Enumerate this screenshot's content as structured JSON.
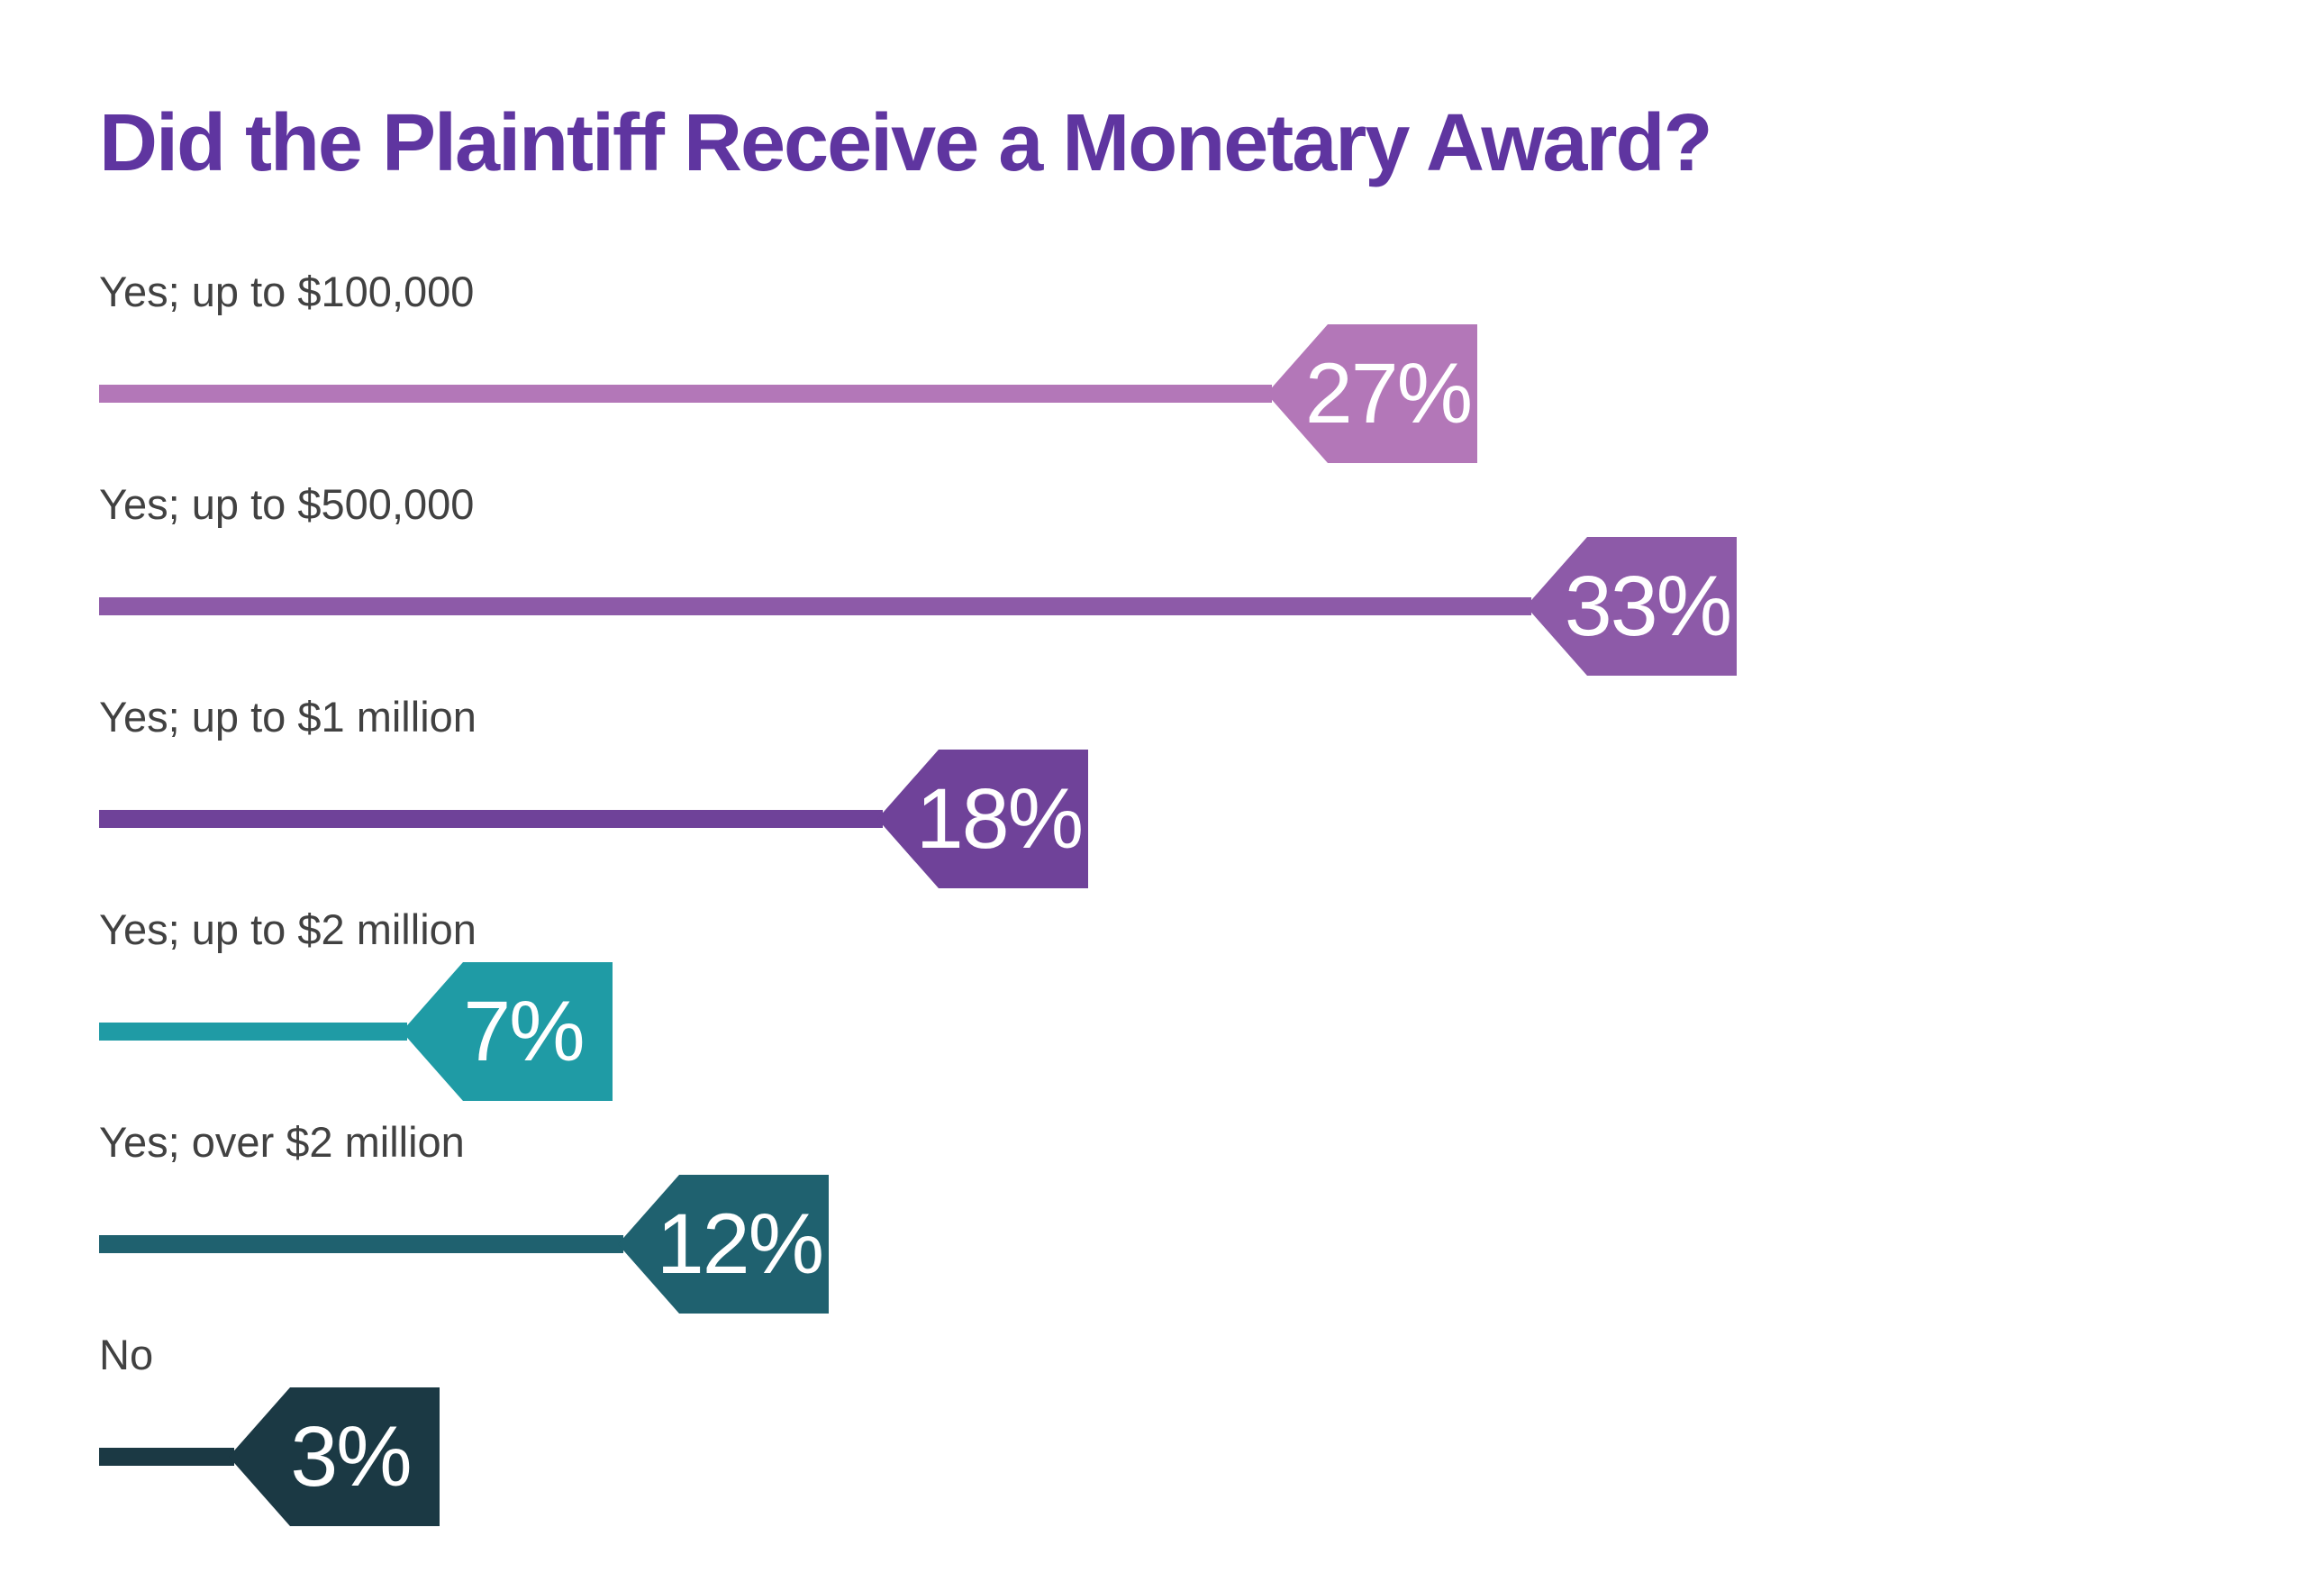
{
  "page": {
    "background": "#ffffff"
  },
  "title": {
    "text": "Did the Plaintiff Receive a Monetary Award?",
    "color": "#5f35a0"
  },
  "chart_data": {
    "type": "bar",
    "orientation": "horizontal",
    "value_unit": "percent",
    "title": "Did the Plaintiff Receive a Monetary Award?",
    "categories": [
      "Yes; up to $100,000",
      "Yes; up to $500,000",
      "Yes; up to $1 million",
      "Yes; up to $2 million",
      "Yes; over $2 million",
      "No"
    ],
    "values": [
      27,
      33,
      18,
      7,
      12,
      3
    ],
    "value_labels": [
      "27%",
      "33%",
      "18%",
      "7%",
      "12%",
      "3%"
    ],
    "bar_colors": [
      "#b377b8",
      "#8d5aa8",
      "#6f4299",
      "#1f9ba5",
      "#1f616f",
      "#1b3944"
    ],
    "label_color": "#414141",
    "value_text_color": "#ffffff",
    "xlim": [
      0,
      40
    ],
    "grid": false,
    "legend": false
  }
}
